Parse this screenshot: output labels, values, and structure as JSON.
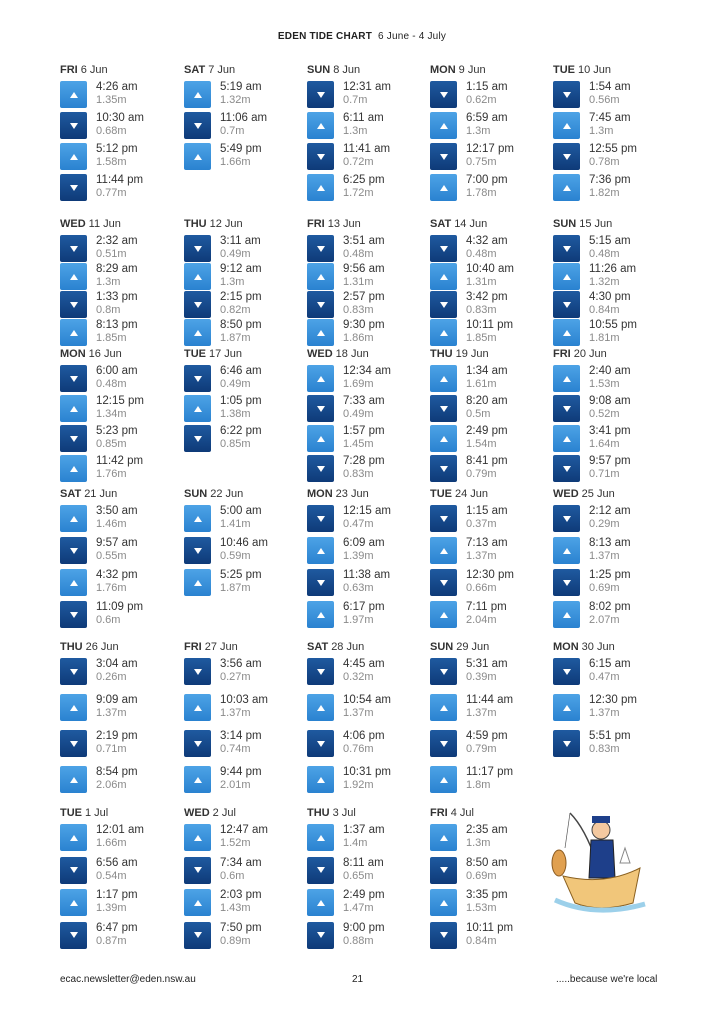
{
  "header": {
    "title": "EDEN TIDE CHART",
    "range": "6 June - 4 July"
  },
  "legend": {
    "high_color": "#3a93dc",
    "low_color": "#164a8c",
    "high_icon": "arrow-up-icon",
    "low_icon": "arrow-down-icon"
  },
  "rows": [
    [
      {
        "day": "FRI",
        "date": "6 Jun",
        "tides": [
          {
            "type": "high",
            "time": "4:26 am",
            "height": "1.35m"
          },
          {
            "type": "low",
            "time": "10:30 am",
            "height": "0.68m"
          },
          {
            "type": "high",
            "time": "5:12 pm",
            "height": "1.58m"
          },
          {
            "type": "low",
            "time": "11:44 pm",
            "height": "0.77m"
          }
        ]
      },
      {
        "day": "SAT",
        "date": "7 Jun",
        "tides": [
          {
            "type": "high",
            "time": "5:19 am",
            "height": "1.32m"
          },
          {
            "type": "low",
            "time": "11:06 am",
            "height": "0.7m"
          },
          {
            "type": "high",
            "time": "5:49 pm",
            "height": "1.66m"
          }
        ]
      },
      {
        "day": "SUN",
        "date": "8 Jun",
        "tides": [
          {
            "type": "low",
            "time": "12:31 am",
            "height": "0.7m"
          },
          {
            "type": "high",
            "time": "6:11 am",
            "height": "1.3m"
          },
          {
            "type": "low",
            "time": "11:41 am",
            "height": "0.72m"
          },
          {
            "type": "high",
            "time": "6:25 pm",
            "height": "1.72m"
          }
        ]
      },
      {
        "day": "MON",
        "date": "9 Jun",
        "tides": [
          {
            "type": "low",
            "time": "1:15 am",
            "height": "0.62m"
          },
          {
            "type": "high",
            "time": "6:59 am",
            "height": "1.3m"
          },
          {
            "type": "low",
            "time": "12:17 pm",
            "height": "0.75m"
          },
          {
            "type": "high",
            "time": "7:00 pm",
            "height": "1.78m"
          }
        ]
      },
      {
        "day": "TUE",
        "date": "10 Jun",
        "tides": [
          {
            "type": "low",
            "time": "1:54 am",
            "height": "0.56m"
          },
          {
            "type": "high",
            "time": "7:45 am",
            "height": "1.3m"
          },
          {
            "type": "low",
            "time": "12:55 pm",
            "height": "0.78m"
          },
          {
            "type": "high",
            "time": "7:36 pm",
            "height": "1.82m"
          }
        ]
      }
    ],
    [
      {
        "day": "WED",
        "date": "11 Jun",
        "tides": [
          {
            "type": "low",
            "time": "2:32 am",
            "height": "0.51m"
          },
          {
            "type": "high",
            "time": "8:29 am",
            "height": "1.3m"
          },
          {
            "type": "low",
            "time": "1:33 pm",
            "height": "0.8m"
          },
          {
            "type": "high",
            "time": "8:13 pm",
            "height": "1.85m"
          }
        ]
      },
      {
        "day": "THU",
        "date": "12 Jun",
        "tides": [
          {
            "type": "low",
            "time": "3:11 am",
            "height": "0.49m"
          },
          {
            "type": "high",
            "time": "9:12 am",
            "height": "1.3m"
          },
          {
            "type": "low",
            "time": "2:15 pm",
            "height": "0.82m"
          },
          {
            "type": "high",
            "time": "8:50 pm",
            "height": "1.87m"
          }
        ]
      },
      {
        "day": "FRI",
        "date": "13 Jun",
        "tides": [
          {
            "type": "low",
            "time": "3:51 am",
            "height": "0.48m"
          },
          {
            "type": "high",
            "time": "9:56 am",
            "height": "1.31m"
          },
          {
            "type": "low",
            "time": "2:57 pm",
            "height": "0.83m"
          },
          {
            "type": "high",
            "time": "9:30 pm",
            "height": "1.86m"
          }
        ]
      },
      {
        "day": "SAT",
        "date": "14 Jun",
        "tides": [
          {
            "type": "low",
            "time": "4:32 am",
            "height": "0.48m"
          },
          {
            "type": "high",
            "time": "10:40 am",
            "height": "1.31m"
          },
          {
            "type": "low",
            "time": "3:42 pm",
            "height": "0.83m"
          },
          {
            "type": "high",
            "time": "10:11 pm",
            "height": "1.85m"
          }
        ]
      },
      {
        "day": "SUN",
        "date": "15 Jun",
        "tides": [
          {
            "type": "low",
            "time": "5:15 am",
            "height": "0.48m"
          },
          {
            "type": "high",
            "time": "11:26 am",
            "height": "1.32m"
          },
          {
            "type": "low",
            "time": "4:30 pm",
            "height": "0.84m"
          },
          {
            "type": "high",
            "time": "10:55 pm",
            "height": "1.81m"
          }
        ]
      }
    ],
    [
      {
        "day": "MON",
        "date": "16 Jun",
        "tides": [
          {
            "type": "low",
            "time": "6:00 am",
            "height": "0.48m"
          },
          {
            "type": "high",
            "time": "12:15 pm",
            "height": "1.34m"
          },
          {
            "type": "low",
            "time": "5:23 pm",
            "height": "0.85m"
          },
          {
            "type": "high",
            "time": "11:42 pm",
            "height": "1.76m"
          }
        ]
      },
      {
        "day": "TUE",
        "date": "17 Jun",
        "tides": [
          {
            "type": "low",
            "time": "6:46 am",
            "height": "0.49m"
          },
          {
            "type": "high",
            "time": "1:05 pm",
            "height": "1.38m"
          },
          {
            "type": "low",
            "time": "6:22 pm",
            "height": "0.85m"
          }
        ]
      },
      {
        "day": "WED",
        "date": "18 Jun",
        "tides": [
          {
            "type": "high",
            "time": "12:34 am",
            "height": "1.69m"
          },
          {
            "type": "low",
            "time": "7:33 am",
            "height": "0.49m"
          },
          {
            "type": "high",
            "time": "1:57 pm",
            "height": "1.45m"
          },
          {
            "type": "low",
            "time": "7:28 pm",
            "height": "0.83m"
          }
        ]
      },
      {
        "day": "THU",
        "date": "19 Jun",
        "tides": [
          {
            "type": "high",
            "time": "1:34 am",
            "height": "1.61m"
          },
          {
            "type": "low",
            "time": "8:20 am",
            "height": "0.5m"
          },
          {
            "type": "high",
            "time": "2:49 pm",
            "height": "1.54m"
          },
          {
            "type": "low",
            "time": "8:41 pm",
            "height": "0.79m"
          }
        ]
      },
      {
        "day": "FRI",
        "date": "20 Jun",
        "tides": [
          {
            "type": "high",
            "time": "2:40 am",
            "height": "1.53m"
          },
          {
            "type": "low",
            "time": "9:08 am",
            "height": "0.52m"
          },
          {
            "type": "high",
            "time": "3:41 pm",
            "height": "1.64m"
          },
          {
            "type": "low",
            "time": "9:57 pm",
            "height": "0.71m"
          }
        ]
      }
    ],
    [
      {
        "day": "SAT",
        "date": "21 Jun",
        "tides": [
          {
            "type": "high",
            "time": "3:50 am",
            "height": "1.46m"
          },
          {
            "type": "low",
            "time": "9:57 am",
            "height": "0.55m"
          },
          {
            "type": "high",
            "time": "4:32 pm",
            "height": "1.76m"
          },
          {
            "type": "low",
            "time": "11:09 pm",
            "height": "0.6m"
          }
        ]
      },
      {
        "day": "SUN",
        "date": "22 Jun",
        "tides": [
          {
            "type": "high",
            "time": "5:00 am",
            "height": "1.41m"
          },
          {
            "type": "low",
            "time": "10:46 am",
            "height": "0.59m"
          },
          {
            "type": "high",
            "time": "5:25 pm",
            "height": "1.87m"
          }
        ]
      },
      {
        "day": "MON",
        "date": "23 Jun",
        "tides": [
          {
            "type": "low",
            "time": "12:15 am",
            "height": "0.47m"
          },
          {
            "type": "high",
            "time": "6:09 am",
            "height": "1.39m"
          },
          {
            "type": "low",
            "time": "11:38 am",
            "height": "0.63m"
          },
          {
            "type": "high",
            "time": "6:17 pm",
            "height": "1.97m"
          }
        ]
      },
      {
        "day": "TUE",
        "date": "24 Jun",
        "tides": [
          {
            "type": "low",
            "time": "1:15 am",
            "height": "0.37m"
          },
          {
            "type": "high",
            "time": "7:13 am",
            "height": "1.37m"
          },
          {
            "type": "low",
            "time": "12:30 pm",
            "height": "0.66m"
          },
          {
            "type": "high",
            "time": "7:11 pm",
            "height": "2.04m"
          }
        ]
      },
      {
        "day": "WED",
        "date": "25 Jun",
        "tides": [
          {
            "type": "low",
            "time": "2:12 am",
            "height": "0.29m"
          },
          {
            "type": "high",
            "time": "8:13 am",
            "height": "1.37m"
          },
          {
            "type": "low",
            "time": "1:25 pm",
            "height": "0.69m"
          },
          {
            "type": "high",
            "time": "8:02 pm",
            "height": "2.07m"
          }
        ]
      }
    ],
    [
      {
        "day": "THU",
        "date": "26 Jun",
        "tides": [
          {
            "type": "low",
            "time": "3:04 am",
            "height": "0.26m"
          },
          {
            "type": "high",
            "time": "9:09 am",
            "height": "1.37m"
          },
          {
            "type": "low",
            "time": "2:19 pm",
            "height": "0.71m"
          },
          {
            "type": "high",
            "time": "8:54 pm",
            "height": "2.06m"
          }
        ]
      },
      {
        "day": "FRI",
        "date": "27 Jun",
        "tides": [
          {
            "type": "low",
            "time": "3:56 am",
            "height": "0.27m"
          },
          {
            "type": "high",
            "time": "10:03 am",
            "height": "1.37m"
          },
          {
            "type": "low",
            "time": "3:14 pm",
            "height": "0.74m"
          },
          {
            "type": "high",
            "time": "9:44 pm",
            "height": "2.01m"
          }
        ]
      },
      {
        "day": "SAT",
        "date": "28 Jun",
        "tides": [
          {
            "type": "low",
            "time": "4:45 am",
            "height": "0.32m"
          },
          {
            "type": "high",
            "time": "10:54 am",
            "height": "1.37m"
          },
          {
            "type": "low",
            "time": "4:06 pm",
            "height": "0.76m"
          },
          {
            "type": "high",
            "time": "10:31 pm",
            "height": "1.92m"
          }
        ]
      },
      {
        "day": "SUN",
        "date": "29 Jun",
        "tides": [
          {
            "type": "low",
            "time": "5:31 am",
            "height": "0.39m"
          },
          {
            "type": "high",
            "time": "11:44 am",
            "height": "1.37m"
          },
          {
            "type": "low",
            "time": "4:59 pm",
            "height": "0.79m"
          },
          {
            "type": "high",
            "time": "11:17 pm",
            "height": "1.8m"
          }
        ]
      },
      {
        "day": "MON",
        "date": "30 Jun",
        "tides": [
          {
            "type": "low",
            "time": "6:15 am",
            "height": "0.47m"
          },
          {
            "type": "high",
            "time": "12:30 pm",
            "height": "1.37m"
          },
          {
            "type": "low",
            "time": "5:51 pm",
            "height": "0.83m"
          }
        ]
      }
    ],
    [
      {
        "day": "TUE",
        "date": "1 Jul",
        "tides": [
          {
            "type": "high",
            "time": "12:01 am",
            "height": "1.66m"
          },
          {
            "type": "low",
            "time": "6:56 am",
            "height": "0.54m"
          },
          {
            "type": "high",
            "time": "1:17 pm",
            "height": "1.39m"
          },
          {
            "type": "low",
            "time": "6:47 pm",
            "height": "0.87m"
          }
        ]
      },
      {
        "day": "WED",
        "date": "2 Jul",
        "tides": [
          {
            "type": "high",
            "time": "12:47 am",
            "height": "1.52m"
          },
          {
            "type": "low",
            "time": "7:34 am",
            "height": "0.6m"
          },
          {
            "type": "high",
            "time": "2:03 pm",
            "height": "1.43m"
          },
          {
            "type": "low",
            "time": "7:50 pm",
            "height": "0.89m"
          }
        ]
      },
      {
        "day": "THU",
        "date": "3 Jul",
        "tides": [
          {
            "type": "high",
            "time": "1:37 am",
            "height": "1.4m"
          },
          {
            "type": "low",
            "time": "8:11 am",
            "height": "0.65m"
          },
          {
            "type": "high",
            "time": "2:49 pm",
            "height": "1.47m"
          },
          {
            "type": "low",
            "time": "9:00 pm",
            "height": "0.88m"
          }
        ]
      },
      {
        "day": "FRI",
        "date": "4 Jul",
        "tides": [
          {
            "type": "high",
            "time": "2:35 am",
            "height": "1.3m"
          },
          {
            "type": "low",
            "time": "8:50 am",
            "height": "0.69m"
          },
          {
            "type": "high",
            "time": "3:35 pm",
            "height": "1.53m"
          },
          {
            "type": "low",
            "time": "10:11 pm",
            "height": "0.84m"
          }
        ]
      }
    ]
  ],
  "footer": {
    "email": "ecac.newsletter@eden.nsw.au",
    "page": "21",
    "tagline": ".....because we're local"
  }
}
